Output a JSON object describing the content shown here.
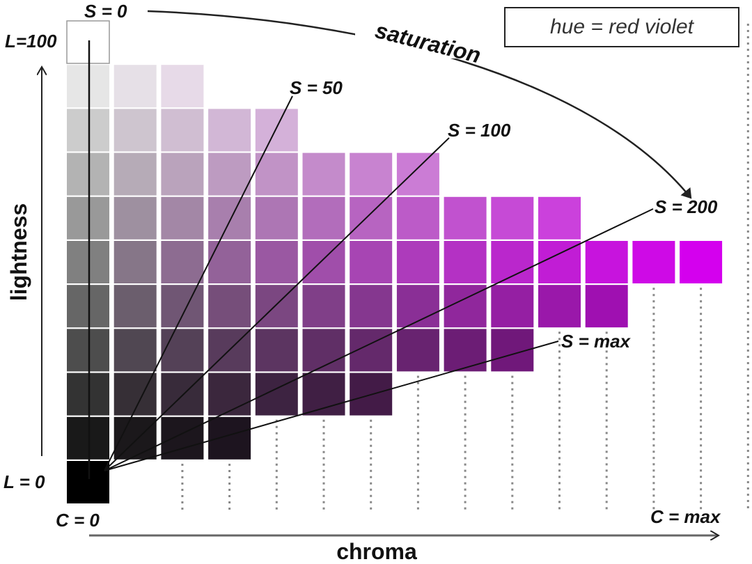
{
  "hue_label": "hue = red violet",
  "axes": {
    "vertical_label": "lightness",
    "horizontal_label": "chroma",
    "l_top": "L=100",
    "l_bottom": "L = 0",
    "c_origin": "C = 0",
    "c_max": "C = max"
  },
  "saturation_arc_label": "saturation",
  "saturation_lines": [
    {
      "label": "S = 0"
    },
    {
      "label": "S = 50"
    },
    {
      "label": "S = 100"
    },
    {
      "label": "S = 200"
    },
    {
      "label": "S = max"
    }
  ],
  "grid": {
    "row_lengths": [
      1,
      3,
      5,
      8,
      11,
      14,
      12,
      10,
      7,
      4,
      1
    ],
    "empty_top_cell": true,
    "dotted_columns_from": 2,
    "dotted_columns_to": 14
  },
  "colors": {
    "hue": "#d400ee",
    "black": "#000000",
    "white": "#ffffff"
  }
}
